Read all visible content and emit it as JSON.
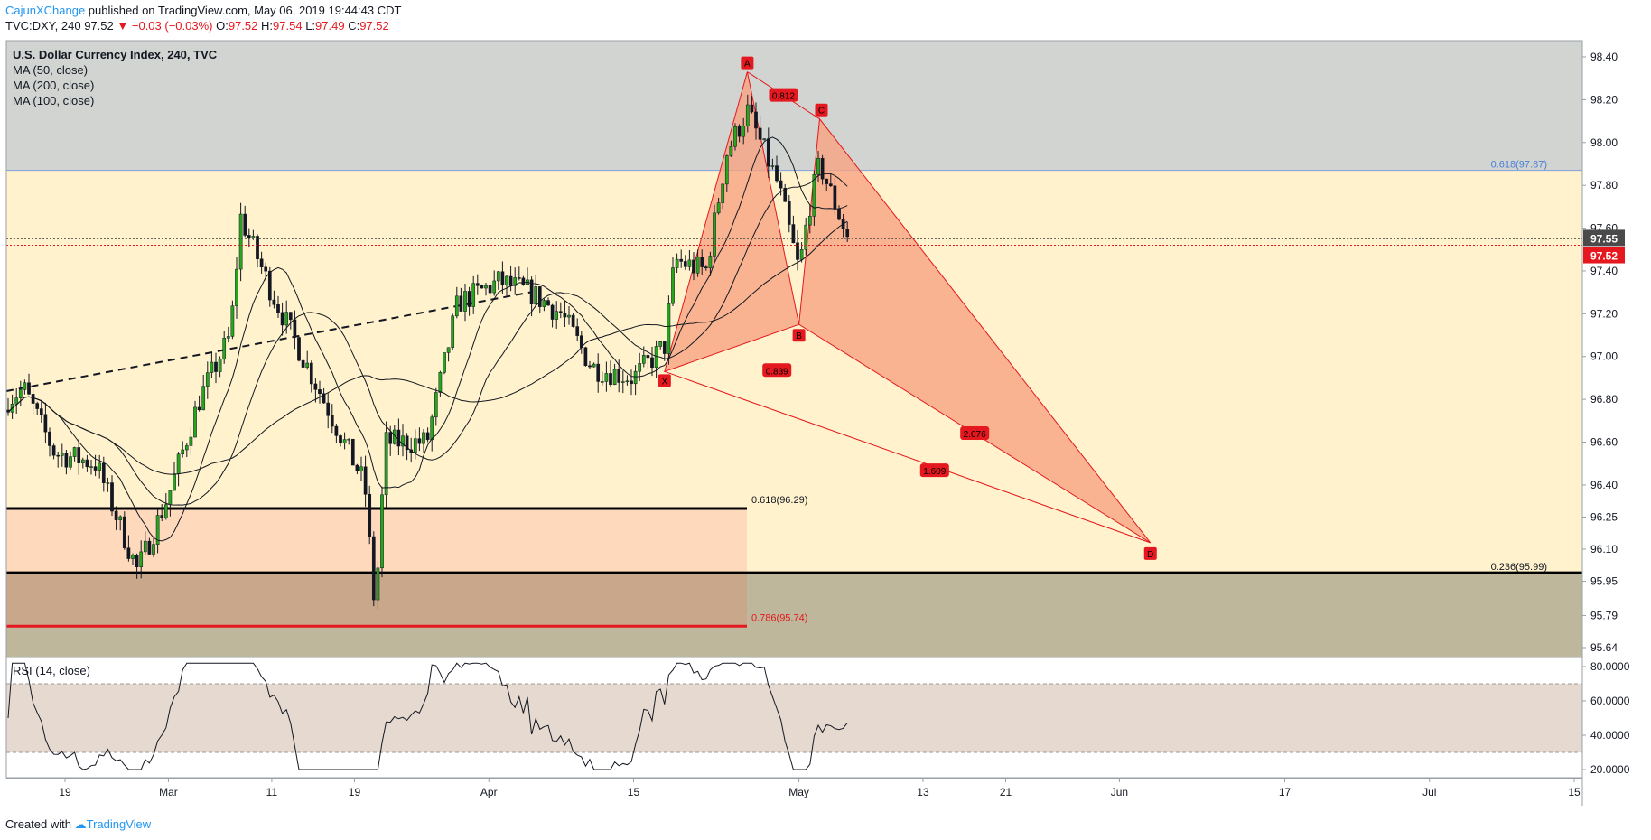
{
  "header": {
    "user": "CajunXChange",
    "published": " published on TradingView.com, May 06, 2019 19:44:43 CDT",
    "symbol": "TVC:DXY, 240",
    "last": "97.52",
    "change": "▼ −0.03 (−0.03%)",
    "o_label": "O:",
    "o": "97.52",
    "h_label": "H:",
    "h": "97.54",
    "l_label": "L:",
    "l": "97.49",
    "c_label": "C:",
    "c": "97.52"
  },
  "legend": {
    "title": "U.S. Dollar Currency Index, 240, TVC",
    "ma1": "MA (50, close)",
    "ma2": "MA (200, close)",
    "ma3": "MA (100, close)"
  },
  "rsi_legend": "RSI (14, close)",
  "footer": {
    "created": "Created with",
    "brand": "TradingView"
  },
  "colors": {
    "zone_upper": "#d1d4d0",
    "zone_mid": "#fff2cc",
    "zone_fib": "#ffd9bb",
    "zone_low": "#c9a78b",
    "zone_bottom": "#bfb79c",
    "pattern_fill": "#f7a382",
    "pattern_line": "#e4181e",
    "candle_up": "#26a61c",
    "candle_down": "#131722",
    "last_price_bg": "#e4181e",
    "close_price_bg": "#4a4a4a",
    "fib_label_blue": "#4a7fd8"
  },
  "chart_data": {
    "type": "candlestick",
    "title": "U.S. Dollar Currency Index, 240, TVC",
    "x_tick_labels": [
      "19",
      "Mar",
      "11",
      "19",
      "Apr",
      "15",
      "May",
      "13",
      "21",
      "Jun",
      "17",
      "Jul",
      "15"
    ],
    "y_tick_labels": [
      "98.40",
      "98.20",
      "98.00",
      "97.80",
      "97.60",
      "97.40",
      "97.20",
      "97.00",
      "96.80",
      "96.60",
      "96.40",
      "96.25",
      "96.10",
      "95.95",
      "95.79",
      "95.64"
    ],
    "ylim": [
      95.6,
      98.5
    ],
    "price_markers": {
      "close": "97.55",
      "last": "97.52"
    },
    "fib_levels": [
      {
        "label": "0.618(97.87)",
        "value": 97.87
      },
      {
        "label": "0.618(96.29)",
        "value": 96.29
      },
      {
        "label": "0.236(95.99)",
        "value": 95.99
      },
      {
        "label": "0.786(95.74)",
        "value": 95.74
      }
    ],
    "pattern": {
      "points": [
        {
          "label": "X",
          "date": "2019-04-18",
          "price": 96.93
        },
        {
          "label": "A",
          "date": "2019-04-26",
          "price": 98.33
        },
        {
          "label": "B",
          "date": "2019-05-01",
          "price": 97.15
        },
        {
          "label": "C",
          "date": "2019-05-03",
          "price": 98.11
        },
        {
          "label": "D",
          "date": "2019-06-04",
          "price": 96.13
        }
      ],
      "ratios": [
        "0.812",
        "0.839",
        "2.076",
        "1.609"
      ]
    },
    "approx_closes": [
      {
        "date": "2019-02-12",
        "close": 96.75
      },
      {
        "date": "2019-02-15",
        "close": 96.85
      },
      {
        "date": "2019-02-18",
        "close": 96.55
      },
      {
        "date": "2019-02-22",
        "close": 96.5
      },
      {
        "date": "2019-02-26",
        "close": 96.0
      },
      {
        "date": "2019-03-01",
        "close": 96.35
      },
      {
        "date": "2019-03-04",
        "close": 96.8
      },
      {
        "date": "2019-03-07",
        "close": 97.1
      },
      {
        "date": "2019-03-08",
        "close": 97.65
      },
      {
        "date": "2019-03-11",
        "close": 97.3
      },
      {
        "date": "2019-03-14",
        "close": 97.0
      },
      {
        "date": "2019-03-18",
        "close": 96.6
      },
      {
        "date": "2019-03-20",
        "close": 96.4
      },
      {
        "date": "2019-03-21",
        "close": 95.8
      },
      {
        "date": "2019-03-22",
        "close": 96.6
      },
      {
        "date": "2019-03-26",
        "close": 96.6
      },
      {
        "date": "2019-03-29",
        "close": 97.25
      },
      {
        "date": "2019-04-02",
        "close": 97.35
      },
      {
        "date": "2019-04-05",
        "close": 97.3
      },
      {
        "date": "2019-04-08",
        "close": 97.2
      },
      {
        "date": "2019-04-11",
        "close": 96.95
      },
      {
        "date": "2019-04-15",
        "close": 96.9
      },
      {
        "date": "2019-04-18",
        "close": 97.05
      },
      {
        "date": "2019-04-19",
        "close": 97.45
      },
      {
        "date": "2019-04-22",
        "close": 97.4
      },
      {
        "date": "2019-04-24",
        "close": 97.95
      },
      {
        "date": "2019-04-26",
        "close": 98.15
      },
      {
        "date": "2019-04-29",
        "close": 97.8
      },
      {
        "date": "2019-05-01",
        "close": 97.4
      },
      {
        "date": "2019-05-02",
        "close": 97.7
      },
      {
        "date": "2019-05-03",
        "close": 97.9
      },
      {
        "date": "2019-05-06",
        "close": 97.52
      }
    ],
    "rsi": {
      "name": "RSI (14, close)",
      "y_tick_labels": [
        "80.0000",
        "60.0000",
        "40.0000",
        "20.0000"
      ],
      "band": [
        30,
        70
      ],
      "ylim": [
        15,
        85
      ]
    }
  }
}
